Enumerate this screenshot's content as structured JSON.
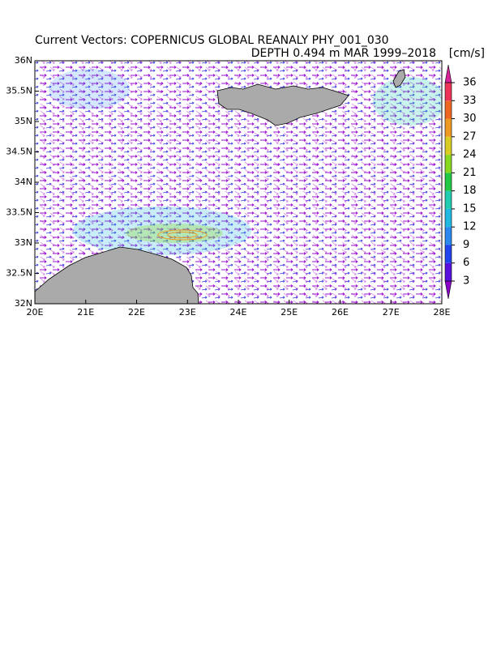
{
  "title": "Current Vectors: COPERNICUS GLOBAL REANALY PHY_001_030",
  "subtitle": "DEPTH 0.494 m  MAR 1999–2018",
  "units": "[cm/s]",
  "map": {
    "xlim": [
      20,
      28
    ],
    "ylim": [
      32,
      36
    ],
    "xticks": [
      {
        "value": 20,
        "label": "20E"
      },
      {
        "value": 21,
        "label": "21E"
      },
      {
        "value": 22,
        "label": "22E"
      },
      {
        "value": 23,
        "label": "23E"
      },
      {
        "value": 24,
        "label": "24E"
      },
      {
        "value": 25,
        "label": "25E"
      },
      {
        "value": 26,
        "label": "26E"
      },
      {
        "value": 27,
        "label": "27E"
      },
      {
        "value": 28,
        "label": "28E"
      }
    ],
    "yticks": [
      {
        "value": 32,
        "label": "32N"
      },
      {
        "value": 32.5,
        "label": "32.5N"
      },
      {
        "value": 33,
        "label": "33N"
      },
      {
        "value": 33.5,
        "label": "33.5N"
      },
      {
        "value": 34,
        "label": "34N"
      },
      {
        "value": 34.5,
        "label": "34.5N"
      },
      {
        "value": 35,
        "label": "35N"
      },
      {
        "value": 35.5,
        "label": "35.5N"
      },
      {
        "value": 36,
        "label": "36N"
      }
    ]
  },
  "colorbar": {
    "ticks": [
      3,
      6,
      9,
      12,
      15,
      18,
      21,
      24,
      27,
      30,
      33,
      36
    ],
    "colors": [
      "#8a00c8",
      "#5a10dc",
      "#2244ee",
      "#2a88ee",
      "#22b8e0",
      "#22ccb0",
      "#22c844",
      "#88d822",
      "#d8cc22",
      "#ee9a22",
      "#ee6622",
      "#ee3358",
      "#d8229a"
    ]
  }
}
